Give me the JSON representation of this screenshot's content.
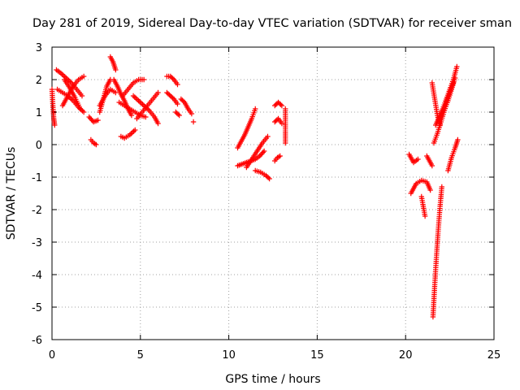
{
  "chart_data": {
    "type": "scatter",
    "title": "Day 281 of 2019, Sidereal Day-to-day VTEC variation (SDTVAR) for receiver sman",
    "xlabel": "GPS time / hours",
    "ylabel": "SDTVAR / TECUs",
    "xlim": [
      0,
      25
    ],
    "ylim": [
      -6,
      3
    ],
    "xticks": [
      "0",
      "5",
      "10",
      "15",
      "20",
      "25"
    ],
    "yticks": [
      "-6",
      "-5",
      "-4",
      "-3",
      "-2",
      "-1",
      "0",
      "1",
      "2",
      "3"
    ],
    "grid": true,
    "marker": "+",
    "color": "#ff0000",
    "segments": [
      {
        "x": [
          0.0,
          0.05,
          0.1,
          0.15
        ],
        "y": [
          1.7,
          1.2,
          0.8,
          0.6
        ]
      },
      {
        "x": [
          0.25,
          0.5,
          0.8,
          1.1,
          1.4,
          1.7
        ],
        "y": [
          2.3,
          2.2,
          2.05,
          1.9,
          1.7,
          1.5
        ]
      },
      {
        "x": [
          0.3,
          0.6,
          0.9,
          1.2,
          1.5,
          1.8
        ],
        "y": [
          1.7,
          1.6,
          1.5,
          1.35,
          1.15,
          1.0
        ]
      },
      {
        "x": [
          0.6,
          0.9,
          1.2,
          1.5,
          1.8
        ],
        "y": [
          1.2,
          1.5,
          1.8,
          2.0,
          2.1
        ]
      },
      {
        "x": [
          0.7,
          1.0,
          1.3,
          1.6
        ],
        "y": [
          2.0,
          1.75,
          1.45,
          1.1
        ]
      },
      {
        "x": [
          2.1,
          2.35,
          2.6
        ],
        "y": [
          0.85,
          0.7,
          0.75
        ]
      },
      {
        "x": [
          2.2,
          2.35,
          2.5
        ],
        "y": [
          0.15,
          0.05,
          0.0
        ]
      },
      {
        "x": [
          2.7,
          2.9,
          3.1,
          3.3
        ],
        "y": [
          1.0,
          1.4,
          1.8,
          2.0
        ]
      },
      {
        "x": [
          2.7,
          3.0,
          3.3,
          3.6
        ],
        "y": [
          1.2,
          1.5,
          1.7,
          1.6
        ]
      },
      {
        "x": [
          3.3,
          3.45,
          3.6
        ],
        "y": [
          2.7,
          2.55,
          2.3
        ]
      },
      {
        "x": [
          3.5,
          3.7,
          3.9,
          4.1,
          4.3,
          4.5
        ],
        "y": [
          2.0,
          1.8,
          1.55,
          1.35,
          1.1,
          0.9
        ]
      },
      {
        "x": [
          4.0,
          4.3,
          4.6,
          4.9,
          5.2
        ],
        "y": [
          1.5,
          1.7,
          1.9,
          2.0,
          2.0
        ]
      },
      {
        "x": [
          3.8,
          4.1,
          4.4,
          4.7,
          5.0,
          5.3
        ],
        "y": [
          1.3,
          1.2,
          1.1,
          1.0,
          0.9,
          0.85
        ]
      },
      {
        "x": [
          3.9,
          4.1,
          4.4,
          4.7
        ],
        "y": [
          0.25,
          0.2,
          0.3,
          0.45
        ]
      },
      {
        "x": [
          4.6,
          4.9,
          5.2,
          5.5,
          5.8,
          6.0
        ],
        "y": [
          1.5,
          1.35,
          1.2,
          1.05,
          0.85,
          0.65
        ]
      },
      {
        "x": [
          4.8,
          5.1,
          5.4,
          5.7,
          6.0
        ],
        "y": [
          0.8,
          1.0,
          1.2,
          1.4,
          1.6
        ]
      },
      {
        "x": [
          6.5,
          6.7,
          6.9,
          7.1
        ],
        "y": [
          2.1,
          2.1,
          2.0,
          1.85
        ]
      },
      {
        "x": [
          6.5,
          6.7,
          6.9,
          7.1
        ],
        "y": [
          1.6,
          1.5,
          1.4,
          1.25
        ]
      },
      {
        "x": [
          7.3,
          7.5,
          7.7,
          7.9
        ],
        "y": [
          1.4,
          1.3,
          1.1,
          0.95
        ]
      },
      {
        "x": [
          7.0,
          7.2
        ],
        "y": [
          1.0,
          0.9
        ]
      },
      {
        "x": [
          8.0
        ],
        "y": [
          0.7
        ]
      },
      {
        "x": [
          10.5,
          10.7,
          10.9,
          11.1,
          11.3,
          11.5
        ],
        "y": [
          -0.1,
          0.1,
          0.3,
          0.55,
          0.8,
          1.1
        ]
      },
      {
        "x": [
          10.5,
          10.75,
          11.0,
          11.25,
          11.5,
          11.75,
          12.0
        ],
        "y": [
          -0.65,
          -0.6,
          -0.55,
          -0.5,
          -0.45,
          -0.35,
          -0.2
        ]
      },
      {
        "x": [
          11.0,
          11.3,
          11.6,
          11.9,
          12.2
        ],
        "y": [
          -0.7,
          -0.45,
          -0.2,
          0.05,
          0.25
        ]
      },
      {
        "x": [
          11.5,
          11.8,
          12.1,
          12.3
        ],
        "y": [
          -0.8,
          -0.85,
          -0.95,
          -1.05
        ]
      },
      {
        "x": [
          12.6,
          12.8,
          13.0
        ],
        "y": [
          1.2,
          1.3,
          1.2
        ]
      },
      {
        "x": [
          12.6,
          12.8,
          13.0
        ],
        "y": [
          0.7,
          0.8,
          0.65
        ]
      },
      {
        "x": [
          12.6,
          12.75,
          12.9
        ],
        "y": [
          -0.5,
          -0.4,
          -0.35
        ]
      },
      {
        "x": [
          13.2,
          13.2
        ],
        "y": [
          1.1,
          0.05
        ]
      },
      {
        "x": [
          20.2,
          20.45,
          20.7
        ],
        "y": [
          -0.3,
          -0.55,
          -0.45
        ]
      },
      {
        "x": [
          20.3,
          20.6,
          20.9,
          21.2,
          21.4
        ],
        "y": [
          -1.5,
          -1.2,
          -1.1,
          -1.15,
          -1.4
        ]
      },
      {
        "x": [
          20.9,
          21.0,
          21.1
        ],
        "y": [
          -1.6,
          -1.9,
          -2.2
        ]
      },
      {
        "x": [
          21.2,
          21.35,
          21.5
        ],
        "y": [
          -0.35,
          -0.5,
          -0.65
        ]
      },
      {
        "x": [
          21.5,
          21.65,
          21.8,
          21.95
        ],
        "y": [
          1.9,
          1.4,
          0.9,
          0.6
        ]
      },
      {
        "x": [
          21.7,
          21.9,
          22.1,
          22.3,
          22.5,
          22.7,
          22.9
        ],
        "y": [
          0.6,
          0.85,
          1.1,
          1.4,
          1.7,
          2.0,
          2.4
        ]
      },
      {
        "x": [
          21.6,
          21.8,
          22.0,
          22.2,
          22.4,
          22.6,
          22.8
        ],
        "y": [
          0.05,
          0.35,
          0.7,
          1.05,
          1.35,
          1.7,
          2.05
        ]
      },
      {
        "x": [
          21.9,
          22.1,
          22.3,
          22.5,
          22.7
        ],
        "y": [
          0.7,
          1.0,
          1.3,
          1.6,
          1.9
        ]
      },
      {
        "x": [
          21.55,
          21.65,
          21.75,
          21.85,
          21.95,
          22.05
        ],
        "y": [
          -5.3,
          -4.3,
          -3.4,
          -2.6,
          -1.9,
          -1.3
        ]
      },
      {
        "x": [
          22.4,
          22.6,
          22.8,
          22.95
        ],
        "y": [
          -0.8,
          -0.4,
          -0.1,
          0.15
        ]
      }
    ]
  }
}
